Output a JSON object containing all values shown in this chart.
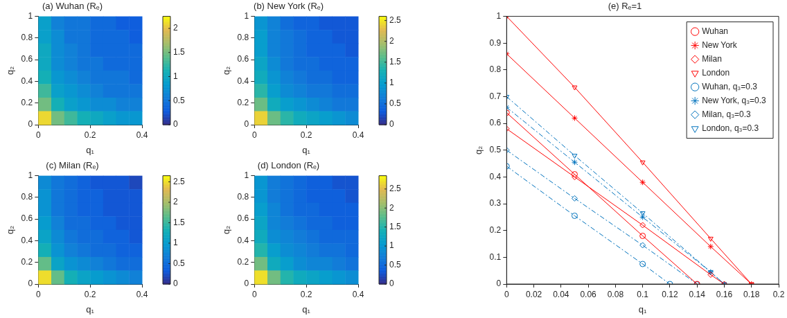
{
  "chart_data": [
    {
      "type": "heatmap",
      "title": "(a) Wuhan (Rₑ)",
      "xlabel": "q₁",
      "ylabel": "q₂",
      "x": [
        0.025,
        0.075,
        0.125,
        0.175,
        0.225,
        0.275,
        0.325,
        0.375
      ],
      "xlim": [
        0,
        0.4
      ],
      "xticks": [
        0,
        0.2,
        0.4
      ],
      "ylim": [
        0,
        1
      ],
      "yticks": [
        0,
        0.2,
        0.4,
        0.6,
        0.8,
        1
      ],
      "clim": [
        0,
        2.25
      ],
      "cticks": [
        0,
        0.5,
        1,
        1.5,
        2
      ],
      "cells": [
        [
          0.9,
          0.6,
          0.5,
          0.5,
          0.4,
          0.4,
          0.3,
          0.3
        ],
        [
          0.9,
          0.7,
          0.5,
          0.5,
          0.4,
          0.4,
          0.4,
          0.3
        ],
        [
          1.0,
          0.7,
          0.6,
          0.5,
          0.4,
          0.4,
          0.4,
          0.4
        ],
        [
          1.0,
          0.7,
          0.6,
          0.5,
          0.5,
          0.4,
          0.4,
          0.4
        ],
        [
          1.1,
          0.8,
          0.7,
          0.6,
          0.5,
          0.5,
          0.5,
          0.4
        ],
        [
          1.3,
          0.9,
          0.8,
          0.7,
          0.6,
          0.5,
          0.5,
          0.5
        ],
        [
          1.5,
          1.1,
          0.9,
          0.8,
          0.7,
          0.7,
          0.6,
          0.6
        ],
        [
          2.1,
          1.5,
          1.3,
          1.1,
          1.0,
          0.9,
          0.8,
          0.8
        ]
      ]
    },
    {
      "type": "heatmap",
      "title": "(b) New York (Rₑ)",
      "xlabel": "q₁",
      "ylabel": "q₂",
      "x": [
        0.025,
        0.075,
        0.125,
        0.175,
        0.225,
        0.275,
        0.325,
        0.375
      ],
      "xlim": [
        0,
        0.4
      ],
      "xticks": [
        0,
        0.2,
        0.4
      ],
      "ylim": [
        0,
        1
      ],
      "yticks": [
        0,
        0.2,
        0.4,
        0.6,
        0.8,
        1
      ],
      "clim": [
        0,
        2.6
      ],
      "cticks": [
        0,
        0.5,
        1,
        1.5,
        2,
        2.5
      ],
      "cells": [
        [
          0.9,
          0.7,
          0.5,
          0.4,
          0.4,
          0.3,
          0.3,
          0.3
        ],
        [
          1.0,
          0.7,
          0.6,
          0.5,
          0.4,
          0.4,
          0.3,
          0.3
        ],
        [
          1.0,
          0.7,
          0.6,
          0.5,
          0.4,
          0.4,
          0.4,
          0.3
        ],
        [
          1.1,
          0.8,
          0.6,
          0.5,
          0.5,
          0.4,
          0.4,
          0.4
        ],
        [
          1.2,
          0.9,
          0.7,
          0.6,
          0.5,
          0.5,
          0.4,
          0.4
        ],
        [
          1.4,
          1.0,
          0.8,
          0.7,
          0.6,
          0.6,
          0.5,
          0.5
        ],
        [
          1.7,
          1.2,
          1.0,
          0.9,
          0.8,
          0.7,
          0.6,
          0.6
        ],
        [
          2.4,
          1.7,
          1.4,
          1.2,
          1.1,
          1.0,
          0.9,
          0.8
        ]
      ]
    },
    {
      "type": "heatmap",
      "title": "(c) Milan (Rₑ)",
      "xlabel": "q₁",
      "ylabel": "q₂",
      "x": [
        0.025,
        0.075,
        0.125,
        0.175,
        0.225,
        0.275,
        0.325,
        0.375
      ],
      "xlim": [
        0,
        0.4
      ],
      "xticks": [
        0,
        0.2,
        0.4
      ],
      "ylim": [
        0,
        1
      ],
      "yticks": [
        0,
        0.2,
        0.4,
        0.6,
        0.8,
        1
      ],
      "clim": [
        0,
        2.65
      ],
      "cticks": [
        0,
        0.5,
        1,
        1.5,
        2,
        2.5
      ],
      "cells": [
        [
          0.8,
          0.6,
          0.5,
          0.4,
          0.3,
          0.3,
          0.3,
          0.2
        ],
        [
          0.9,
          0.6,
          0.5,
          0.4,
          0.4,
          0.3,
          0.3,
          0.3
        ],
        [
          0.9,
          0.6,
          0.5,
          0.4,
          0.4,
          0.3,
          0.3,
          0.3
        ],
        [
          1.0,
          0.7,
          0.5,
          0.5,
          0.4,
          0.4,
          0.3,
          0.3
        ],
        [
          1.1,
          0.8,
          0.6,
          0.5,
          0.5,
          0.4,
          0.4,
          0.3
        ],
        [
          1.3,
          0.9,
          0.7,
          0.6,
          0.5,
          0.5,
          0.4,
          0.4
        ],
        [
          1.7,
          1.1,
          0.9,
          0.8,
          0.7,
          0.6,
          0.5,
          0.5
        ],
        [
          2.5,
          1.7,
          1.3,
          1.1,
          1.0,
          0.9,
          0.8,
          0.7
        ]
      ]
    },
    {
      "type": "heatmap",
      "title": "(d) London (Rₑ)",
      "xlabel": "q₁",
      "ylabel": "q₂",
      "x": [
        0.025,
        0.075,
        0.125,
        0.175,
        0.225,
        0.275,
        0.325,
        0.375
      ],
      "xlim": [
        0,
        0.4
      ],
      "xticks": [
        0,
        0.2,
        0.4
      ],
      "ylim": [
        0,
        1
      ],
      "yticks": [
        0,
        0.2,
        0.4,
        0.6,
        0.8,
        1
      ],
      "clim": [
        0,
        2.85
      ],
      "cticks": [
        0,
        0.5,
        1,
        1.5,
        2,
        2.5
      ],
      "cells": [
        [
          1.0,
          0.7,
          0.6,
          0.5,
          0.4,
          0.4,
          0.3,
          0.3
        ],
        [
          1.0,
          0.7,
          0.6,
          0.5,
          0.4,
          0.4,
          0.4,
          0.3
        ],
        [
          1.1,
          0.8,
          0.6,
          0.5,
          0.5,
          0.4,
          0.4,
          0.4
        ],
        [
          1.2,
          0.8,
          0.7,
          0.6,
          0.5,
          0.5,
          0.4,
          0.4
        ],
        [
          1.3,
          0.9,
          0.8,
          0.7,
          0.6,
          0.5,
          0.5,
          0.5
        ],
        [
          1.5,
          1.1,
          0.9,
          0.8,
          0.7,
          0.6,
          0.6,
          0.5
        ],
        [
          1.9,
          1.3,
          1.1,
          0.9,
          0.8,
          0.8,
          0.7,
          0.6
        ],
        [
          2.7,
          1.9,
          1.5,
          1.3,
          1.2,
          1.1,
          1.0,
          0.9
        ]
      ]
    },
    {
      "type": "line",
      "title": "(e) Rₑ=1",
      "xlabel": "q₁",
      "ylabel": "q₂",
      "xlim": [
        0,
        0.2
      ],
      "xticks": [
        0,
        0.02,
        0.04,
        0.06,
        0.08,
        0.1,
        0.12,
        0.14,
        0.16,
        0.18,
        0.2
      ],
      "ylim": [
        0,
        1
      ],
      "yticks": [
        0,
        0.1,
        0.2,
        0.3,
        0.4,
        0.5,
        0.6,
        0.7,
        0.8,
        0.9,
        1
      ],
      "legend": "top right",
      "grid": false,
      "series": [
        {
          "name": "Wuhan",
          "color": "#ff0000",
          "marker": "circle",
          "line_style": "solid",
          "x": [
            0,
            0.05,
            0.1,
            0.14
          ],
          "values": [
            0.64,
            0.41,
            0.18,
            0
          ]
        },
        {
          "name": "New York",
          "color": "#ff0000",
          "marker": "cross",
          "line_style": "solid",
          "x": [
            0,
            0.05,
            0.1,
            0.15,
            0.18
          ],
          "values": [
            0.86,
            0.62,
            0.38,
            0.14,
            0
          ]
        },
        {
          "name": "Milan",
          "color": "#ff0000",
          "marker": "diamond",
          "line_style": "solid",
          "x": [
            0,
            0.05,
            0.1,
            0.15,
            0.16
          ],
          "values": [
            0.58,
            0.4,
            0.22,
            0.035,
            0
          ]
        },
        {
          "name": "London",
          "color": "#ff0000",
          "marker": "triangle",
          "line_style": "solid",
          "x": [
            0,
            0.05,
            0.1,
            0.15,
            0.18
          ],
          "values": [
            1.0,
            0.735,
            0.455,
            0.17,
            0
          ]
        },
        {
          "name": "Wuhan, q₃=0.3",
          "color": "#0072bd",
          "marker": "circle",
          "line_style": "dashed",
          "x": [
            0,
            0.05,
            0.1,
            0.12
          ],
          "values": [
            0.44,
            0.255,
            0.075,
            0
          ]
        },
        {
          "name": "New York, q₃=0.3",
          "color": "#0072bd",
          "marker": "cross",
          "line_style": "dashed",
          "x": [
            0,
            0.05,
            0.1,
            0.15,
            0.16
          ],
          "values": [
            0.66,
            0.455,
            0.25,
            0.045,
            0
          ]
        },
        {
          "name": "Milan, q₃=0.3",
          "color": "#0072bd",
          "marker": "diamond",
          "line_style": "dashed",
          "x": [
            0,
            0.05,
            0.1,
            0.14
          ],
          "values": [
            0.5,
            0.32,
            0.145,
            0
          ]
        },
        {
          "name": "London, q₃=0.3",
          "color": "#0072bd",
          "marker": "triangle",
          "line_style": "dashed",
          "x": [
            0,
            0.05,
            0.1,
            0.15,
            0.16
          ],
          "values": [
            0.7,
            0.48,
            0.265,
            0.045,
            0
          ]
        }
      ]
    }
  ]
}
